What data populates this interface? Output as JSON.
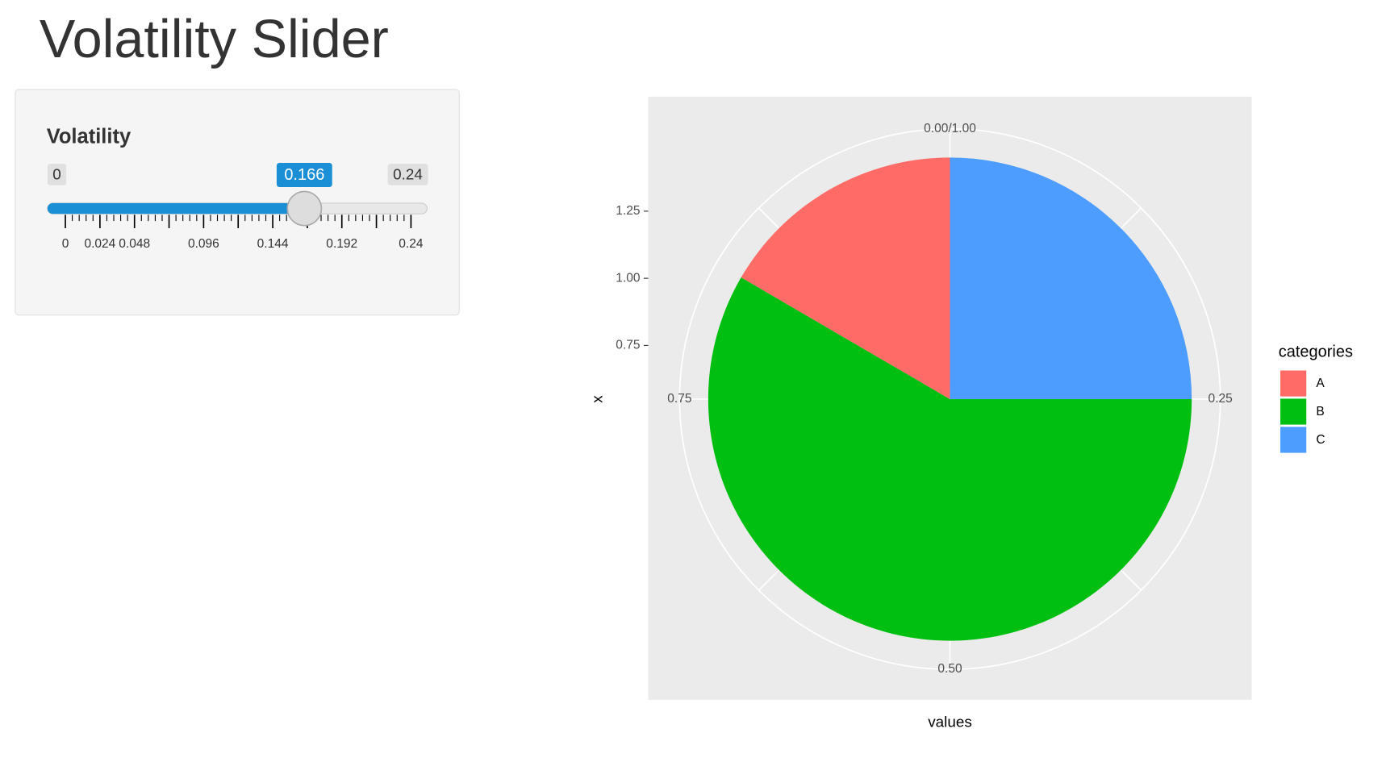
{
  "header": {
    "title": "Volatility Slider"
  },
  "sidebar": {
    "label": "Volatility",
    "min": 0,
    "max": 0.24,
    "value": 0.166,
    "ticks": [
      0,
      0.024,
      0.048,
      {
        "value": 0.072,
        "label": null
      },
      0.096,
      {
        "value": 0.12,
        "label": null
      },
      0.144,
      {
        "value": 0.168,
        "label": null
      },
      0.192,
      {
        "value": 0.216,
        "label": null
      },
      0.24
    ]
  },
  "chart_data": {
    "type": "pie",
    "xlabel": "values",
    "ylabel": "x",
    "legend_title": "categories",
    "categories": [
      "A",
      "B",
      "C"
    ],
    "values": [
      0.166,
      0.584,
      0.25
    ],
    "colors": [
      "#FF6B66",
      "#00BF10",
      "#4C9DFF"
    ],
    "theta_ticks": [
      {
        "value": 0,
        "label": "0.00/1.00"
      },
      0.25,
      {
        "value": 0.5,
        "label": "0.50"
      },
      0.75
    ],
    "rlim": [
      0.55,
      1.45
    ],
    "rticks": [
      0.75,
      {
        "value": 1,
        "label": "1.00"
      },
      1.25
    ]
  }
}
